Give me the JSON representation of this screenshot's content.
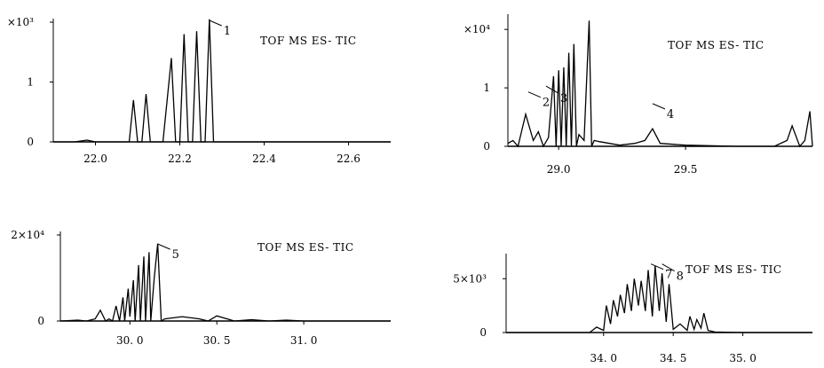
{
  "chart_data": [
    {
      "type": "line",
      "label": "TOF MS ES- TIC",
      "xlim": [
        21.9,
        22.7
      ],
      "ylim": [
        0,
        2.0
      ],
      "x_ticks": [
        {
          "value": 22.0,
          "label": "22.0"
        },
        {
          "value": 22.2,
          "label": "22.2"
        },
        {
          "value": 22.4,
          "label": "22.4"
        },
        {
          "value": 22.6,
          "label": "22.6"
        }
      ],
      "y_ticks": [
        {
          "value": 0,
          "label": "0"
        },
        {
          "value": 1,
          "label": "1"
        },
        {
          "value": 2,
          "label": "×10³"
        }
      ],
      "peak_labels": [
        {
          "text": "1",
          "x": 22.27,
          "y": 2.0
        }
      ],
      "series": [
        {
          "x": [
            21.9,
            21.95,
            21.98,
            22.0,
            22.03,
            22.06,
            22.08,
            22.09,
            22.1,
            22.11,
            22.12,
            22.13,
            22.14,
            22.16,
            22.18,
            22.19,
            22.2,
            22.21,
            22.22,
            22.23,
            22.24,
            22.25,
            22.26,
            22.27,
            22.28,
            22.32,
            22.4,
            22.5,
            22.6,
            22.7
          ],
          "y": [
            0.0,
            0.0,
            0.03,
            0.0,
            0.0,
            0.0,
            0.0,
            0.7,
            0.0,
            0.0,
            0.8,
            0.0,
            0.0,
            0.0,
            1.4,
            0.0,
            0.0,
            1.8,
            0.0,
            0.0,
            1.85,
            0.0,
            0.0,
            2.05,
            0.0,
            0.0,
            0.0,
            0.0,
            0.0,
            0.0
          ]
        }
      ]
    },
    {
      "type": "line",
      "label": "TOF MS ES- TIC",
      "xlim": [
        28.8,
        30.0
      ],
      "ylim": [
        0,
        2.2
      ],
      "x_ticks": [
        {
          "value": 29.0,
          "label": "29.0"
        },
        {
          "value": 29.5,
          "label": "29.5"
        }
      ],
      "y_ticks": [
        {
          "value": 0,
          "label": "0"
        },
        {
          "value": 1,
          "label": "1"
        },
        {
          "value": 2,
          "label": "×10⁴"
        }
      ],
      "peak_labels": [
        {
          "text": "2",
          "x": 28.88,
          "y": 0.9
        },
        {
          "text": "3",
          "x": 28.95,
          "y": 1.0
        },
        {
          "text": "4",
          "x": 29.37,
          "y": 0.7
        }
      ],
      "series": [
        {
          "x": [
            28.8,
            28.82,
            28.84,
            28.87,
            28.9,
            28.92,
            28.94,
            28.96,
            28.98,
            28.99,
            29.0,
            29.01,
            29.02,
            29.03,
            29.04,
            29.05,
            29.06,
            29.07,
            29.08,
            29.1,
            29.12,
            29.13,
            29.14,
            29.16,
            29.2,
            29.24,
            29.3,
            29.34,
            29.37,
            29.4,
            29.5,
            29.7,
            29.85,
            29.9,
            29.92,
            29.95,
            29.97,
            29.99,
            30.0
          ],
          "y": [
            0.05,
            0.1,
            0.0,
            0.55,
            0.1,
            0.25,
            0.0,
            0.15,
            1.2,
            0.0,
            1.3,
            0.0,
            1.35,
            0.0,
            1.6,
            0.0,
            1.75,
            0.0,
            0.2,
            0.1,
            2.15,
            0.0,
            0.1,
            0.08,
            0.05,
            0.02,
            0.05,
            0.1,
            0.3,
            0.05,
            0.02,
            0.0,
            0.0,
            0.1,
            0.35,
            0.0,
            0.1,
            0.6,
            0.0
          ]
        }
      ]
    },
    {
      "type": "line",
      "label": "TOF MS ES- TIC",
      "xlim": [
        29.6,
        31.5
      ],
      "ylim": [
        0,
        2.0
      ],
      "x_ticks": [
        {
          "value": 30.0,
          "label": "30. 0"
        },
        {
          "value": 30.5,
          "label": "30. 5"
        },
        {
          "value": 31.0,
          "label": "31. 0"
        }
      ],
      "y_ticks": [
        {
          "value": 0,
          "label": "0"
        },
        {
          "value": 2,
          "label": "2×10⁴"
        }
      ],
      "peak_labels": [
        {
          "text": "5",
          "x": 30.16,
          "y": 1.75
        }
      ],
      "series": [
        {
          "x": [
            29.6,
            29.7,
            29.75,
            29.8,
            29.83,
            29.86,
            29.88,
            29.9,
            29.92,
            29.94,
            29.96,
            29.97,
            29.99,
            30.0,
            30.02,
            30.03,
            30.05,
            30.06,
            30.08,
            30.09,
            30.11,
            30.12,
            30.14,
            30.16,
            30.18,
            30.2,
            30.3,
            30.4,
            30.45,
            30.5,
            30.6,
            30.7,
            30.8,
            30.9,
            31.0,
            31.2,
            31.5
          ],
          "y": [
            0.0,
            0.02,
            0.0,
            0.05,
            0.25,
            0.0,
            0.05,
            0.0,
            0.35,
            0.0,
            0.55,
            0.0,
            0.75,
            0.1,
            0.95,
            0.0,
            1.3,
            0.0,
            1.5,
            0.0,
            1.6,
            0.0,
            1.0,
            1.8,
            0.0,
            0.05,
            0.1,
            0.05,
            0.0,
            0.12,
            0.0,
            0.03,
            0.0,
            0.02,
            0.0,
            0.0,
            0.0
          ]
        }
      ]
    },
    {
      "type": "line",
      "label": "TOF MS ES- TIC",
      "xlim": [
        33.3,
        35.5
      ],
      "ylim": [
        0,
        7
      ],
      "x_ticks": [
        {
          "value": 34.0,
          "label": "34. 0"
        },
        {
          "value": 34.5,
          "label": "34. 5"
        },
        {
          "value": 35.0,
          "label": "35. 0"
        }
      ],
      "y_ticks": [
        {
          "value": 0,
          "label": "0"
        },
        {
          "value": 5,
          "label": "5×10³"
        }
      ],
      "peak_labels": [
        {
          "text": "7",
          "x": 34.34,
          "y": 6.2
        },
        {
          "text": "8",
          "x": 34.42,
          "y": 6.2
        }
      ],
      "series": [
        {
          "x": [
            33.3,
            33.6,
            33.9,
            33.95,
            34.0,
            34.02,
            34.05,
            34.07,
            34.1,
            34.12,
            34.15,
            34.17,
            34.2,
            34.22,
            34.25,
            34.27,
            34.3,
            34.32,
            34.35,
            34.37,
            34.4,
            34.42,
            34.45,
            34.47,
            34.5,
            34.55,
            34.6,
            34.62,
            34.65,
            34.67,
            34.7,
            34.72,
            34.75,
            34.8,
            35.0,
            35.5
          ],
          "y": [
            0.0,
            0.0,
            0.0,
            0.5,
            0.2,
            2.5,
            0.8,
            3.0,
            1.5,
            3.5,
            1.8,
            4.5,
            2.0,
            5.0,
            2.5,
            4.8,
            2.0,
            5.8,
            1.5,
            6.2,
            2.0,
            5.5,
            1.0,
            4.5,
            0.3,
            0.8,
            0.2,
            1.5,
            0.3,
            1.2,
            0.4,
            1.8,
            0.2,
            0.05,
            0.0,
            0.0
          ]
        }
      ]
    }
  ]
}
